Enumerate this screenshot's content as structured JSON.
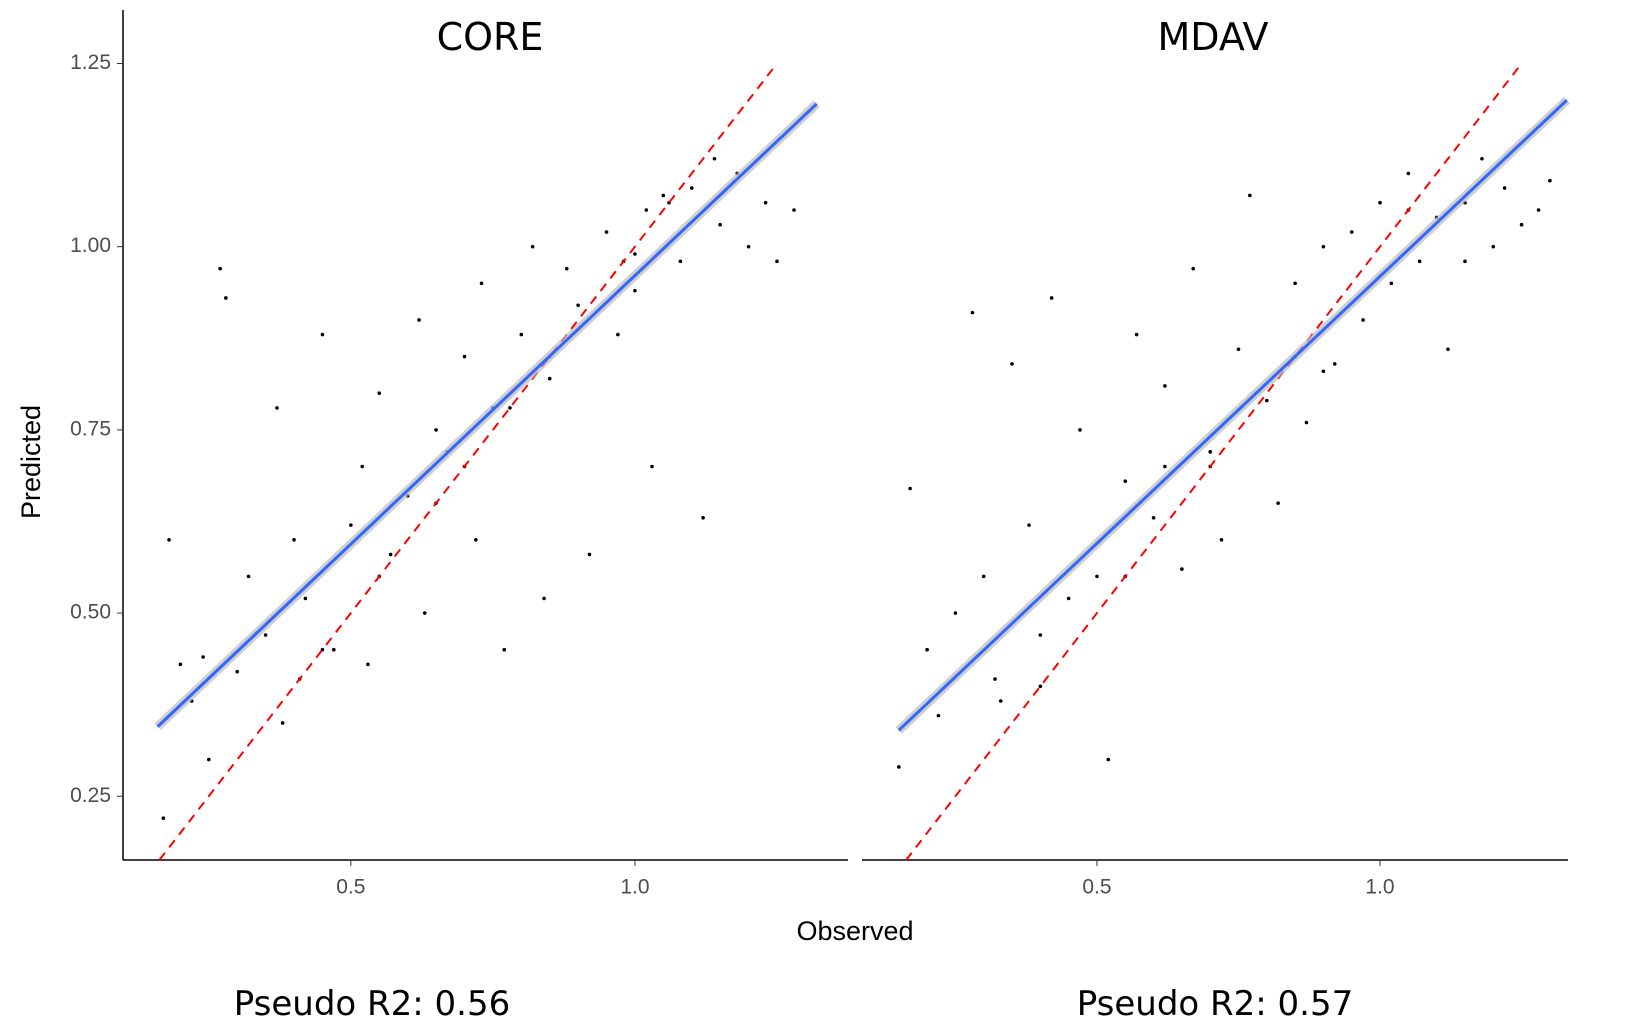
{
  "chart_data": [
    {
      "type": "scatter",
      "title": "CORE",
      "y_label": "Predicted",
      "x_label": "Observed",
      "annotation": "Pseudo R2: 0.56",
      "xlim": [
        0.099,
        1.375
      ],
      "ylim": [
        0.163,
        1.323
      ],
      "xticks": [
        0.5,
        {
          "value": 1,
          "label": "1.0"
        }
      ],
      "yticks": [
        0.25,
        {
          "value": 0.5,
          "label": "0.50"
        },
        0.75,
        {
          "value": 1,
          "label": "1.00"
        },
        1.25
      ],
      "points": {
        "color": "#000000",
        "x": [
          0.17,
          0.18,
          0.2,
          0.22,
          0.25,
          0.27,
          0.28,
          0.3,
          0.32,
          0.35,
          0.37,
          0.38,
          0.4,
          0.42,
          0.45,
          0.47,
          0.5,
          0.52,
          0.53,
          0.55,
          0.57,
          0.6,
          0.62,
          0.63,
          0.65,
          0.67,
          0.7,
          0.72,
          0.73,
          0.75,
          0.77,
          0.8,
          0.82,
          0.84,
          0.85,
          0.88,
          0.9,
          0.92,
          0.95,
          0.97,
          1.0,
          1.02,
          1.03,
          1.05,
          1.08,
          1.1,
          1.12,
          1.15,
          1.18,
          1.2,
          1.23,
          1.25,
          1.28,
          0.65,
          0.45,
          0.55,
          0.85,
          1.06,
          0.98,
          0.41,
          0.24,
          0.7,
          0.78,
          1.0,
          1.14
        ],
        "y": [
          0.22,
          0.6,
          0.43,
          0.38,
          0.3,
          0.97,
          0.93,
          0.42,
          0.55,
          0.47,
          0.78,
          0.35,
          0.6,
          0.52,
          0.88,
          0.45,
          0.62,
          0.7,
          0.43,
          0.8,
          0.58,
          0.66,
          0.9,
          0.5,
          0.75,
          0.72,
          0.85,
          0.6,
          0.95,
          0.78,
          0.45,
          0.88,
          1.0,
          0.52,
          0.82,
          0.97,
          0.92,
          0.58,
          1.02,
          0.88,
          0.99,
          1.05,
          0.7,
          1.07,
          0.98,
          1.08,
          0.63,
          1.03,
          1.1,
          1.0,
          1.06,
          0.98,
          1.05,
          0.65,
          0.45,
          0.55,
          0.85,
          1.06,
          0.98,
          0.41,
          0.44,
          0.7,
          0.78,
          0.94,
          1.12
        ]
      },
      "fit_line": {
        "color": "#3366ff",
        "x": [
          0.16,
          1.32
        ],
        "y": [
          0.345,
          1.195
        ]
      },
      "reference_line": {
        "color": "#ff0000",
        "x": [
          0.163,
          1.25
        ],
        "y": [
          0.163,
          1.25
        ]
      }
    },
    {
      "type": "scatter",
      "title": "MDAV",
      "annotation": "Pseudo R2: 0.57",
      "xlim": [
        0.085,
        1.332
      ],
      "ylim": [
        0.163,
        1.323
      ],
      "xticks": [
        0.5,
        {
          "value": 1,
          "label": "1.0"
        }
      ],
      "points": {
        "color": "#000000",
        "x": [
          0.15,
          0.17,
          0.2,
          0.22,
          0.25,
          0.28,
          0.3,
          0.32,
          0.35,
          0.38,
          0.4,
          0.42,
          0.45,
          0.47,
          0.5,
          0.52,
          0.55,
          0.57,
          0.6,
          0.62,
          0.65,
          0.67,
          0.7,
          0.72,
          0.75,
          0.77,
          0.8,
          0.82,
          0.85,
          0.87,
          0.9,
          0.92,
          0.95,
          0.97,
          1.0,
          1.02,
          1.05,
          1.07,
          1.1,
          1.12,
          1.15,
          1.18,
          1.2,
          1.22,
          1.25,
          1.28,
          1.3,
          0.4,
          0.55,
          0.7,
          0.85,
          1.05,
          0.33,
          0.62,
          0.9,
          1.15
        ],
        "y": [
          0.29,
          0.67,
          0.45,
          0.36,
          0.5,
          0.91,
          0.55,
          0.41,
          0.84,
          0.62,
          0.47,
          0.93,
          0.52,
          0.75,
          0.55,
          0.3,
          0.68,
          0.88,
          0.63,
          0.81,
          0.56,
          0.97,
          0.72,
          0.6,
          0.86,
          1.07,
          0.79,
          0.65,
          0.95,
          0.76,
          1.0,
          0.84,
          1.02,
          0.9,
          1.06,
          0.95,
          1.1,
          0.98,
          1.04,
          0.86,
          1.06,
          1.12,
          1.0,
          1.08,
          1.03,
          1.05,
          1.09,
          0.4,
          0.55,
          0.7,
          0.85,
          1.05,
          0.38,
          0.7,
          0.83,
          0.98
        ]
      },
      "fit_line": {
        "color": "#3366ff",
        "x": [
          0.15,
          1.33
        ],
        "y": [
          0.34,
          1.2
        ]
      },
      "reference_line": {
        "color": "#ff0000",
        "x": [
          0.163,
          1.25
        ],
        "y": [
          0.163,
          1.25
        ]
      }
    }
  ]
}
